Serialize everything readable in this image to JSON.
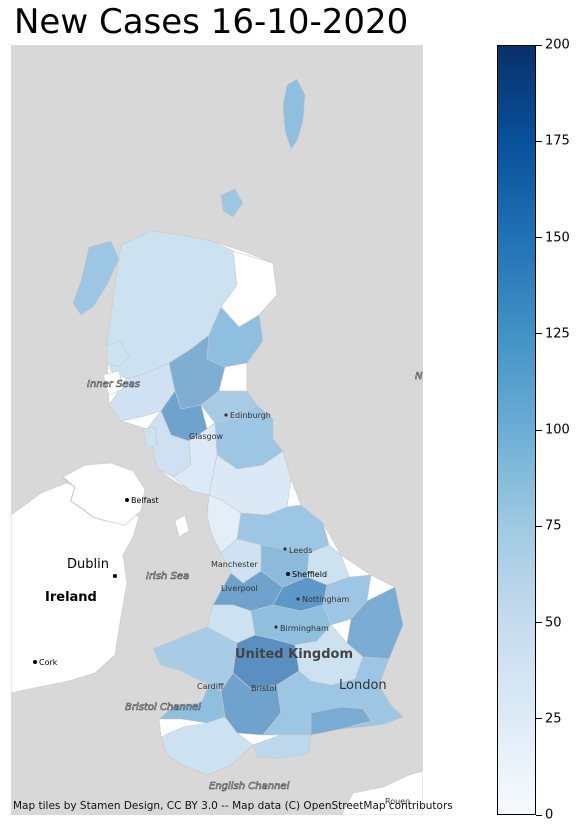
{
  "title": "New Cases 16-10-2020",
  "attribution": "Map tiles by Stamen Design, CC BY 3.0 -- Map data (C) OpenStreetMap contributors",
  "colors": {
    "background": "#d8d8d8",
    "land": "#ffffff",
    "colormap": "Blues"
  },
  "colorbar": {
    "min": 0,
    "max": 200,
    "ticks": [
      {
        "value": 0,
        "label": "0"
      },
      {
        "value": 25,
        "label": "25"
      },
      {
        "value": 50,
        "label": "50"
      },
      {
        "value": 75,
        "label": "75"
      },
      {
        "value": 100,
        "label": "100"
      },
      {
        "value": 125,
        "label": "125"
      },
      {
        "value": 150,
        "label": "150"
      },
      {
        "value": 175,
        "label": "175"
      },
      {
        "value": 200,
        "label": "200"
      }
    ]
  },
  "places": {
    "inner_seas": "Inner Seas",
    "edinburgh": "Edinburgh",
    "glasgow": "Glasgow",
    "belfast": "Belfast",
    "dublin": "Dublin",
    "ireland": "Ireland",
    "irish_sea": "Irish Sea",
    "leeds": "Leeds",
    "manchester": "Manchester",
    "sheffield": "Sheffield",
    "liverpool": "Liverpool",
    "nottingham": "Nottingham",
    "birmingham": "Birmingham",
    "united_kingdom": "United Kingdom",
    "cork": "Cork",
    "cardiff": "Cardiff",
    "bristol": "Bristol",
    "london": "London",
    "bristol_channel": "Bristol Channel",
    "english_channel": "English Channel",
    "rouen": "Rouen",
    "edge_n": "N"
  }
}
